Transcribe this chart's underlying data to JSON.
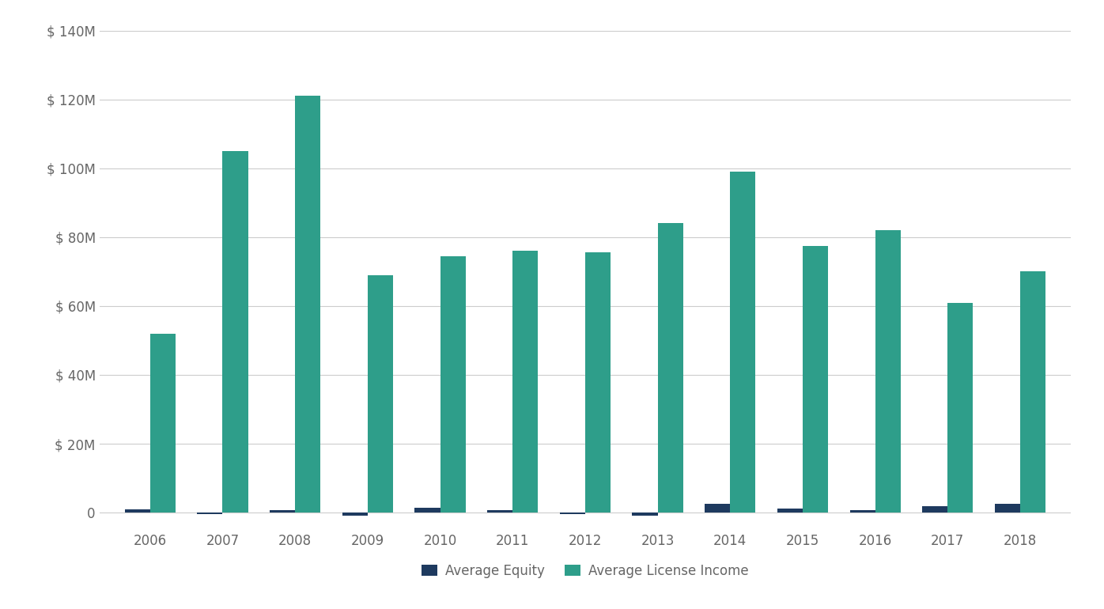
{
  "years": [
    2006,
    2007,
    2008,
    2009,
    2010,
    2011,
    2012,
    2013,
    2014,
    2015,
    2016,
    2017,
    2018
  ],
  "avg_equity": [
    1.0,
    -0.5,
    0.8,
    -0.8,
    1.5,
    0.8,
    -0.5,
    -0.8,
    2.5,
    1.2,
    0.8,
    1.8,
    2.5
  ],
  "avg_license": [
    52,
    105,
    121,
    69,
    74.5,
    76,
    75.5,
    84,
    99,
    77.5,
    82,
    61,
    70
  ],
  "equity_color": "#1e3a5f",
  "license_color": "#2e9e8a",
  "background_color": "#ffffff",
  "grid_color": "#cccccc",
  "ylim_min": -5,
  "ylim_max": 140,
  "yticks": [
    0,
    20,
    40,
    60,
    80,
    100,
    120,
    140
  ],
  "legend_labels": [
    "Average Equity",
    "Average License Income"
  ],
  "bar_width": 0.35,
  "tick_label_color": "#666666",
  "tick_fontsize": 12
}
